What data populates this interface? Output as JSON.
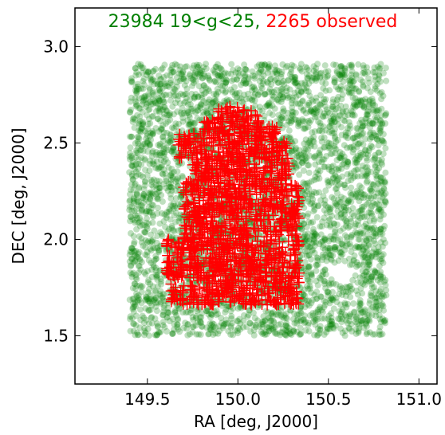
{
  "chart_data": {
    "type": "scatter",
    "title_parts": [
      {
        "text": "23984 19<g<25, ",
        "color": "#008000"
      },
      {
        "text": "2265 observed",
        "color": "#ff0000"
      }
    ],
    "xlabel": "RA [deg, J2000]",
    "ylabel": "DEC [deg, J2000]",
    "xlim": [
      149.1,
      151.1
    ],
    "ylim": [
      1.25,
      3.2
    ],
    "xticks": [
      "149.5",
      "150.0",
      "150.5",
      "151.0"
    ],
    "yticks": [
      "1.5",
      "2.0",
      "2.5",
      "3.0"
    ],
    "grid": false,
    "series": [
      {
        "marker": "circle",
        "color": "#008000",
        "alpha": 0.25,
        "count": 23984,
        "region": {
          "ra": [
            149.4,
            150.82
          ],
          "dec": [
            1.5,
            2.91
          ]
        },
        "holes": [
          {
            "ra": 150.58,
            "dec": 1.82,
            "r": 0.06
          },
          {
            "ra": 150.45,
            "dec": 2.28,
            "r": 0.035
          },
          {
            "ra": 150.68,
            "dec": 2.65,
            "r": 0.03
          },
          {
            "ra": 150.32,
            "dec": 2.55,
            "r": 0.025
          },
          {
            "ra": 150.75,
            "dec": 1.55,
            "r": 0.03
          }
        ]
      },
      {
        "marker": "plus",
        "color": "#ff0000",
        "count": 2265,
        "region_polygon": [
          [
            149.63,
            1.66
          ],
          [
            150.34,
            1.66
          ],
          [
            150.34,
            2.3
          ],
          [
            150.29,
            2.3
          ],
          [
            150.29,
            2.52
          ],
          [
            150.22,
            2.52
          ],
          [
            150.22,
            2.6
          ],
          [
            150.12,
            2.6
          ],
          [
            150.12,
            2.69
          ],
          [
            149.88,
            2.69
          ],
          [
            149.88,
            2.62
          ],
          [
            149.8,
            2.62
          ],
          [
            149.8,
            2.55
          ],
          [
            149.67,
            2.55
          ],
          [
            149.67,
            2.42
          ],
          [
            149.75,
            2.42
          ],
          [
            149.75,
            2.3
          ],
          [
            149.7,
            2.3
          ],
          [
            149.7,
            2.0
          ],
          [
            149.6,
            2.0
          ],
          [
            149.6,
            1.8
          ],
          [
            149.63,
            1.8
          ]
        ]
      }
    ]
  }
}
